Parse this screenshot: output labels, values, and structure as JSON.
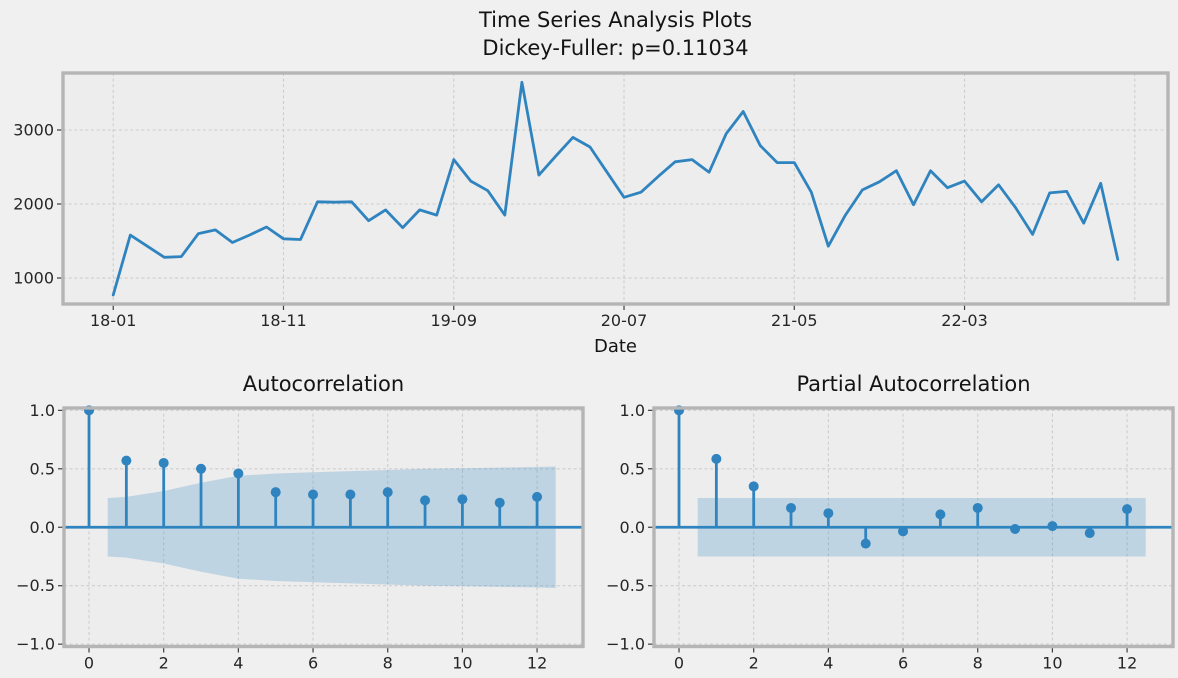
{
  "figure": {
    "title_line1": "Time Series Analysis Plots",
    "title_line2": "Dickey-Fuller: p=0.11034",
    "colors": {
      "accent": "#2f84c0",
      "band": "rgba(47,132,192,0.24)",
      "axes_bg": "#ededed",
      "fig_bg": "#f0f0f0",
      "grid": "#cdcdcd",
      "spine": "#b5b5b5",
      "tick": "#404040",
      "text": "#262626"
    }
  },
  "chart_data": [
    {
      "type": "line",
      "name": "time-series",
      "title": "Time Series Analysis Plots",
      "subtitle": "Dickey-Fuller: p=0.11034",
      "xlabel": "Date",
      "xlim": [
        -2.95,
        61.95
      ],
      "ylim": [
        649,
        3770
      ],
      "grid": true,
      "x_ticks": [
        {
          "pos": 0,
          "label": "18-01"
        },
        {
          "pos": 10,
          "label": "18-11"
        },
        {
          "pos": 20,
          "label": "19-09"
        },
        {
          "pos": 30,
          "label": "20-07"
        },
        {
          "pos": 40,
          "label": "21-05"
        },
        {
          "pos": 50,
          "label": "22-03"
        },
        {
          "pos": 60,
          "label": ""
        }
      ],
      "y_ticks": [
        {
          "v": 1000,
          "label": "1000"
        },
        {
          "v": 2000,
          "label": "2000"
        },
        {
          "v": 3000,
          "label": "3000"
        }
      ],
      "x": [
        0,
        1,
        2,
        3,
        4,
        5,
        6,
        7,
        8,
        9,
        10,
        11,
        12,
        13,
        14,
        15,
        16,
        17,
        18,
        19,
        20,
        21,
        22,
        23,
        24,
        25,
        26,
        27,
        28,
        29,
        30,
        31,
        32,
        33,
        34,
        35,
        36,
        37,
        38,
        39,
        40,
        41,
        42,
        43,
        44,
        45,
        46,
        47,
        48,
        49,
        50,
        51,
        52,
        53,
        54,
        55,
        56,
        57,
        58,
        59
      ],
      "values": [
        770,
        1580,
        1430,
        1280,
        1290,
        1600,
        1650,
        1480,
        1580,
        1690,
        1530,
        1520,
        2030,
        2025,
        2030,
        1775,
        1920,
        1680,
        1920,
        1850,
        2600,
        2310,
        2180,
        1850,
        3645,
        2390,
        2650,
        2900,
        2770,
        2430,
        2090,
        2160,
        2370,
        2570,
        2600,
        2430,
        2950,
        3250,
        2790,
        2560,
        2560,
        2160,
        1430,
        1850,
        2190,
        2300,
        2450,
        1990,
        2450,
        2220,
        2310,
        2030,
        2260,
        1950,
        1590,
        2150,
        2170,
        1740,
        2280,
        1250
      ]
    },
    {
      "type": "stem",
      "name": "acf",
      "title": "Autocorrelation",
      "xlim": [
        -0.67,
        13.23
      ],
      "ylim": [
        -1.02,
        1.02
      ],
      "grid": true,
      "x_ticks": [
        {
          "pos": 0,
          "label": "0"
        },
        {
          "pos": 2,
          "label": "2"
        },
        {
          "pos": 4,
          "label": "4"
        },
        {
          "pos": 6,
          "label": "6"
        },
        {
          "pos": 8,
          "label": "8"
        },
        {
          "pos": 10,
          "label": "10"
        },
        {
          "pos": 12,
          "label": "12"
        }
      ],
      "y_ticks": [
        {
          "v": 1.0,
          "label": "1.0"
        },
        {
          "v": 0.5,
          "label": "0.5"
        },
        {
          "v": 0.0,
          "label": "0.0"
        },
        {
          "v": -0.5,
          "label": "−0.5"
        },
        {
          "v": -1.0,
          "label": "−1.0"
        }
      ],
      "lags": [
        0,
        1,
        2,
        3,
        4,
        5,
        6,
        7,
        8,
        9,
        10,
        11,
        12
      ],
      "values": [
        1.0,
        0.57,
        0.55,
        0.5,
        0.46,
        0.3,
        0.28,
        0.28,
        0.3,
        0.23,
        0.24,
        0.21,
        0.26
      ],
      "conf_x": [
        0.5,
        1,
        2,
        3,
        4,
        5,
        6,
        7,
        8,
        9,
        10,
        11,
        12,
        12.5
      ],
      "conf_upper": [
        0.25,
        0.26,
        0.31,
        0.38,
        0.44,
        0.46,
        0.47,
        0.48,
        0.49,
        0.5,
        0.505,
        0.51,
        0.515,
        0.52
      ],
      "conf_lower": [
        -0.25,
        -0.26,
        -0.31,
        -0.38,
        -0.44,
        -0.46,
        -0.47,
        -0.48,
        -0.49,
        -0.5,
        -0.505,
        -0.51,
        -0.515,
        -0.52
      ]
    },
    {
      "type": "stem",
      "name": "pacf",
      "title": "Partial Autocorrelation",
      "xlim": [
        -0.67,
        13.23
      ],
      "ylim": [
        -1.02,
        1.02
      ],
      "grid": true,
      "x_ticks": [
        {
          "pos": 0,
          "label": "0"
        },
        {
          "pos": 2,
          "label": "2"
        },
        {
          "pos": 4,
          "label": "4"
        },
        {
          "pos": 6,
          "label": "6"
        },
        {
          "pos": 8,
          "label": "8"
        },
        {
          "pos": 10,
          "label": "10"
        },
        {
          "pos": 12,
          "label": "12"
        }
      ],
      "y_ticks": [
        {
          "v": 1.0,
          "label": "1.0"
        },
        {
          "v": 0.5,
          "label": "0.5"
        },
        {
          "v": 0.0,
          "label": "0.0"
        },
        {
          "v": -0.5,
          "label": "−0.5"
        },
        {
          "v": -1.0,
          "label": "−1.0"
        }
      ],
      "lags": [
        0,
        1,
        2,
        3,
        4,
        5,
        6,
        7,
        8,
        9,
        10,
        11,
        12
      ],
      "values": [
        1.0,
        0.585,
        0.35,
        0.165,
        0.12,
        -0.14,
        -0.035,
        0.11,
        0.165,
        -0.015,
        0.01,
        -0.05,
        0.155
      ],
      "conf_x": [
        0.5,
        12.5
      ],
      "conf_upper": [
        0.25,
        0.25
      ],
      "conf_lower": [
        -0.25,
        -0.25
      ]
    }
  ]
}
